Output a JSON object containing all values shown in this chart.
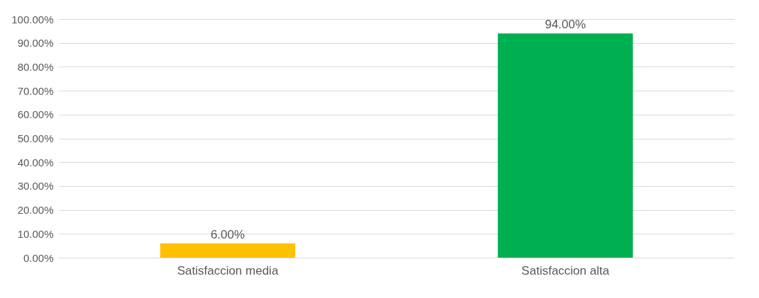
{
  "chart_data": {
    "type": "bar",
    "categories": [
      "Satisfaccion media",
      "Satisfaccion alta"
    ],
    "values": [
      6,
      94
    ],
    "colors": [
      "#ffc000",
      "#00b050"
    ],
    "value_labels": [
      "6.00%",
      "94.00%"
    ],
    "ylim": [
      0,
      100
    ],
    "yticks": [
      {
        "value": 0,
        "label": "0.00%"
      },
      {
        "value": 10,
        "label": "10.00%"
      },
      {
        "value": 20,
        "label": "20.00%"
      },
      {
        "value": 30,
        "label": "30.00%"
      },
      {
        "value": 40,
        "label": "40.00%"
      },
      {
        "value": 50,
        "label": "50.00%"
      },
      {
        "value": 60,
        "label": "60.00%"
      },
      {
        "value": 70,
        "label": "70.00%"
      },
      {
        "value": 80,
        "label": "80.00%"
      },
      {
        "value": 90,
        "label": "90.00%"
      },
      {
        "value": 100,
        "label": "100.00%"
      }
    ],
    "grid": "y"
  }
}
